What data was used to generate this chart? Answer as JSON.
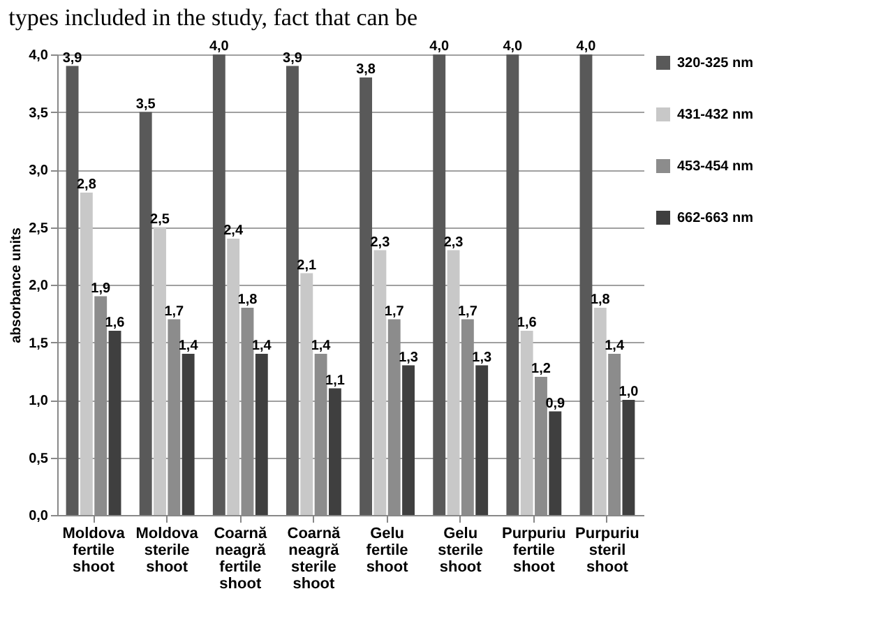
{
  "chart_data": {
    "type": "bar",
    "ylabel": "absorbance units",
    "annotations": [
      "types included in the study, fact that can be"
    ],
    "categories": [
      "Moldova fertile shoot",
      "Moldova sterile shoot",
      "Coarnă neagră fertile shoot",
      "Coarnă neagră sterile shoot",
      "Gelu fertile shoot",
      "Gelu sterile shoot",
      "Purpuriu fertile shoot",
      "Purpuriu steril shoot"
    ],
    "series": [
      {
        "name": "320-325 nm",
        "color": "#595959",
        "values": [
          3.9,
          3.5,
          4.0,
          3.9,
          3.8,
          4.0,
          4.0,
          4.0
        ],
        "value_labels": [
          "3,9",
          "3,5",
          "4,0",
          "3,9",
          "3,8",
          "4,0",
          "4,0",
          "4,0"
        ]
      },
      {
        "name": "431-432 nm",
        "color": "#c8c8c8",
        "values": [
          2.8,
          2.5,
          2.4,
          2.1,
          2.3,
          2.3,
          1.6,
          1.8
        ],
        "value_labels": [
          "2,8",
          "2,5",
          "2,4",
          "2,1",
          "2,3",
          "2,3",
          "1,6",
          "1,8"
        ]
      },
      {
        "name": "453-454 nm",
        "color": "#8c8c8c",
        "values": [
          1.9,
          1.7,
          1.8,
          1.4,
          1.7,
          1.7,
          1.2,
          1.4
        ],
        "value_labels": [
          "1,9",
          "1,7",
          "1,8",
          "1,4",
          "1,7",
          "1,7",
          "1,2",
          "1,4"
        ]
      },
      {
        "name": "662-663 nm",
        "color": "#3f3f3f",
        "values": [
          1.6,
          1.4,
          1.4,
          1.1,
          1.3,
          1.3,
          0.9,
          1.0
        ],
        "value_labels": [
          "1,6",
          "1,4",
          "1,4",
          "1,1",
          "1,3",
          "1,3",
          "0,9",
          "1,0"
        ]
      }
    ],
    "ylim": [
      0,
      4
    ],
    "yticks": [
      {
        "value": 0,
        "label": "0,0"
      },
      {
        "value": 0.5,
        "label": "0,5"
      },
      {
        "value": 1,
        "label": "1,0"
      },
      {
        "value": 1.5,
        "label": "1,5"
      },
      {
        "value": 2,
        "label": "2,0"
      },
      {
        "value": 2.5,
        "label": "2,5"
      },
      {
        "value": 3,
        "label": "3,0"
      },
      {
        "value": 3.5,
        "label": "3,5"
      },
      {
        "value": 4,
        "label": "4,0"
      }
    ],
    "grid": "y",
    "legend": "right"
  }
}
